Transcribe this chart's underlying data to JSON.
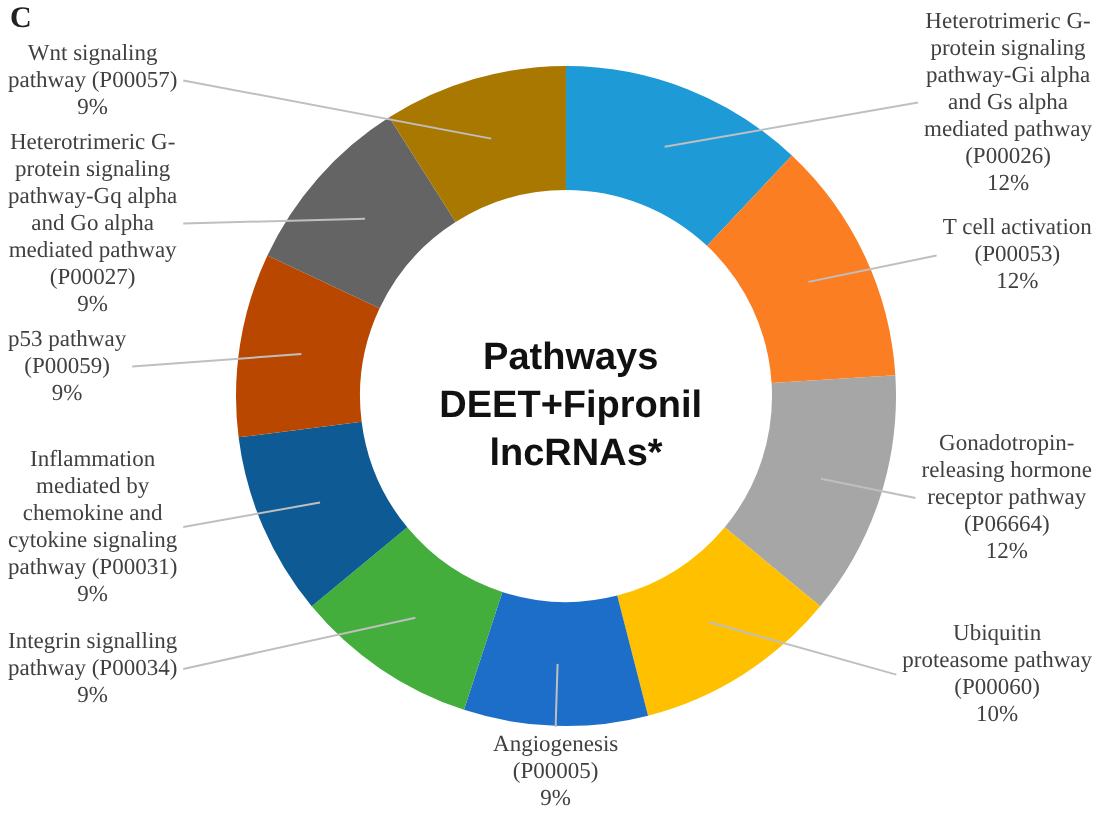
{
  "chart_data": {
    "type": "donut",
    "title": "Pathways DEET+Fipronil lncRNAs*",
    "annotations": [
      "C"
    ],
    "categories": [
      "Heterotrimeric G-protein signaling pathway-Gi alpha and Gs alpha mediated pathway (P00026)",
      "T cell activation (P00053)",
      "Gonadotropin-releasing hormone receptor pathway (P06664)",
      "Ubiquitin proteasome pathway (P00060)",
      "Angiogenesis (P00005)",
      "Integrin signalling pathway (P00034)",
      "Inflammation mediated by chemokine and cytokine signaling pathway (P00031)",
      "p53 pathway (P00059)",
      "Heterotrimeric G-protein signaling pathway-Gq alpha and Go alpha mediated pathway (P00027)",
      "Wnt signaling pathway (P00057)"
    ],
    "values": [
      12,
      12,
      12,
      10,
      9,
      9,
      9,
      9,
      9,
      9
    ],
    "value_labels": [
      "12%",
      "12%",
      "12%",
      "10%",
      "9%",
      "9%",
      "9%",
      "9%",
      "9%",
      "9%"
    ],
    "colors": [
      "#1e9ad6",
      "#fc7e22",
      "#a6a6a6",
      "#ffc000",
      "#1c6ec8",
      "#43ae3b",
      "#0e5a94",
      "#b94700",
      "#646464",
      "#a87800"
    ]
  }
}
